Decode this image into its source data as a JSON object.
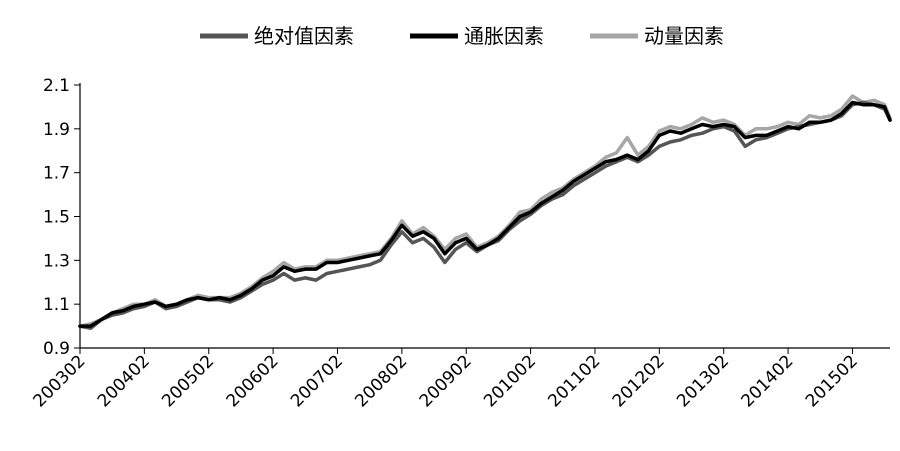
{
  "chart_data": {
    "type": "line",
    "title": "",
    "xlabel": "",
    "ylabel": "",
    "ylim": [
      0.9,
      2.1
    ],
    "yticks": [
      "0.9",
      "1.1",
      "1.3",
      "1.5",
      "1.7",
      "1.9",
      "2.1"
    ],
    "xtick_labels": [
      "200302",
      "200402",
      "200502",
      "200602",
      "200702",
      "200802",
      "200902",
      "201002",
      "201102",
      "201202",
      "201302",
      "201402",
      "201502"
    ],
    "grid": false,
    "legend_position": "top",
    "colors": {
      "绝对值因素": "#555555",
      "通胀因素": "#000000",
      "动量因素": "#a6a6a6"
    },
    "series": [
      {
        "name": "绝对值因素",
        "color": "#555555",
        "points": [
          [
            "200302",
            1.0
          ],
          [
            "200304",
            0.99
          ],
          [
            "200306",
            1.03
          ],
          [
            "200308",
            1.05
          ],
          [
            "200310",
            1.06
          ],
          [
            "200312",
            1.08
          ],
          [
            "200402",
            1.09
          ],
          [
            "200404",
            1.11
          ],
          [
            "200406",
            1.08
          ],
          [
            "200408",
            1.09
          ],
          [
            "200410",
            1.11
          ],
          [
            "200412",
            1.13
          ],
          [
            "200502",
            1.12
          ],
          [
            "200504",
            1.12
          ],
          [
            "200506",
            1.11
          ],
          [
            "200508",
            1.13
          ],
          [
            "200510",
            1.16
          ],
          [
            "200512",
            1.19
          ],
          [
            "200602",
            1.21
          ],
          [
            "200604",
            1.24
          ],
          [
            "200606",
            1.21
          ],
          [
            "200608",
            1.22
          ],
          [
            "200610",
            1.21
          ],
          [
            "200612",
            1.24
          ],
          [
            "200702",
            1.25
          ],
          [
            "200704",
            1.26
          ],
          [
            "200706",
            1.27
          ],
          [
            "200708",
            1.28
          ],
          [
            "200710",
            1.3
          ],
          [
            "200712",
            1.37
          ],
          [
            "200802",
            1.43
          ],
          [
            "200804",
            1.38
          ],
          [
            "200806",
            1.4
          ],
          [
            "200808",
            1.36
          ],
          [
            "200810",
            1.29
          ],
          [
            "200812",
            1.35
          ],
          [
            "200902",
            1.38
          ],
          [
            "200904",
            1.34
          ],
          [
            "200906",
            1.37
          ],
          [
            "200908",
            1.39
          ],
          [
            "200910",
            1.44
          ],
          [
            "200912",
            1.48
          ],
          [
            "201002",
            1.51
          ],
          [
            "201004",
            1.55
          ],
          [
            "201006",
            1.58
          ],
          [
            "201008",
            1.6
          ],
          [
            "201010",
            1.64
          ],
          [
            "201012",
            1.67
          ],
          [
            "201102",
            1.7
          ],
          [
            "201104",
            1.73
          ],
          [
            "201106",
            1.75
          ],
          [
            "201108",
            1.77
          ],
          [
            "201110",
            1.75
          ],
          [
            "201112",
            1.78
          ],
          [
            "201202",
            1.82
          ],
          [
            "201204",
            1.84
          ],
          [
            "201206",
            1.85
          ],
          [
            "201208",
            1.87
          ],
          [
            "201210",
            1.88
          ],
          [
            "201212",
            1.9
          ],
          [
            "201302",
            1.91
          ],
          [
            "201304",
            1.89
          ],
          [
            "201306",
            1.82
          ],
          [
            "201308",
            1.85
          ],
          [
            "201310",
            1.86
          ],
          [
            "201312",
            1.88
          ],
          [
            "201402",
            1.9
          ],
          [
            "201404",
            1.91
          ],
          [
            "201406",
            1.92
          ],
          [
            "201408",
            1.93
          ],
          [
            "201410",
            1.94
          ],
          [
            "201412",
            1.96
          ],
          [
            "201502",
            2.01
          ],
          [
            "201504",
            2.02
          ],
          [
            "201506",
            2.01
          ],
          [
            "201508",
            1.99
          ],
          [
            "201509",
            1.94
          ]
        ]
      },
      {
        "name": "通胀因素",
        "color": "#000000",
        "points": [
          [
            "200302",
            1.0
          ],
          [
            "200304",
            1.0
          ],
          [
            "200306",
            1.03
          ],
          [
            "200308",
            1.06
          ],
          [
            "200310",
            1.07
          ],
          [
            "200312",
            1.09
          ],
          [
            "200402",
            1.1
          ],
          [
            "200404",
            1.11
          ],
          [
            "200406",
            1.09
          ],
          [
            "200408",
            1.1
          ],
          [
            "200410",
            1.12
          ],
          [
            "200412",
            1.13
          ],
          [
            "200502",
            1.12
          ],
          [
            "200504",
            1.13
          ],
          [
            "200506",
            1.12
          ],
          [
            "200508",
            1.14
          ],
          [
            "200510",
            1.17
          ],
          [
            "200512",
            1.21
          ],
          [
            "200602",
            1.23
          ],
          [
            "200604",
            1.27
          ],
          [
            "200606",
            1.25
          ],
          [
            "200608",
            1.26
          ],
          [
            "200610",
            1.26
          ],
          [
            "200612",
            1.29
          ],
          [
            "200702",
            1.29
          ],
          [
            "200704",
            1.3
          ],
          [
            "200706",
            1.31
          ],
          [
            "200708",
            1.32
          ],
          [
            "200710",
            1.33
          ],
          [
            "200712",
            1.39
          ],
          [
            "200802",
            1.46
          ],
          [
            "200804",
            1.41
          ],
          [
            "200806",
            1.43
          ],
          [
            "200808",
            1.4
          ],
          [
            "200810",
            1.33
          ],
          [
            "200812",
            1.38
          ],
          [
            "200902",
            1.4
          ],
          [
            "200904",
            1.35
          ],
          [
            "200906",
            1.37
          ],
          [
            "200908",
            1.4
          ],
          [
            "200910",
            1.45
          ],
          [
            "200912",
            1.5
          ],
          [
            "201002",
            1.52
          ],
          [
            "201004",
            1.56
          ],
          [
            "201006",
            1.59
          ],
          [
            "201008",
            1.62
          ],
          [
            "201010",
            1.66
          ],
          [
            "201012",
            1.69
          ],
          [
            "201102",
            1.72
          ],
          [
            "201104",
            1.75
          ],
          [
            "201106",
            1.76
          ],
          [
            "201108",
            1.78
          ],
          [
            "201110",
            1.76
          ],
          [
            "201112",
            1.8
          ],
          [
            "201202",
            1.87
          ],
          [
            "201204",
            1.89
          ],
          [
            "201206",
            1.88
          ],
          [
            "201208",
            1.9
          ],
          [
            "201210",
            1.92
          ],
          [
            "201212",
            1.91
          ],
          [
            "201302",
            1.92
          ],
          [
            "201304",
            1.91
          ],
          [
            "201306",
            1.86
          ],
          [
            "201308",
            1.87
          ],
          [
            "201310",
            1.87
          ],
          [
            "201312",
            1.89
          ],
          [
            "201402",
            1.91
          ],
          [
            "201404",
            1.9
          ],
          [
            "201406",
            1.93
          ],
          [
            "201408",
            1.93
          ],
          [
            "201410",
            1.94
          ],
          [
            "201412",
            1.97
          ],
          [
            "201502",
            2.02
          ],
          [
            "201504",
            2.01
          ],
          [
            "201506",
            2.01
          ],
          [
            "201508",
            2.0
          ],
          [
            "201509",
            1.94
          ]
        ]
      },
      {
        "name": "动量因素",
        "color": "#a6a6a6",
        "points": [
          [
            "200302",
            1.0
          ],
          [
            "200304",
            1.01
          ],
          [
            "200306",
            1.03
          ],
          [
            "200308",
            1.06
          ],
          [
            "200310",
            1.08
          ],
          [
            "200312",
            1.1
          ],
          [
            "200402",
            1.1
          ],
          [
            "200404",
            1.12
          ],
          [
            "200406",
            1.09
          ],
          [
            "200408",
            1.1
          ],
          [
            "200410",
            1.12
          ],
          [
            "200412",
            1.14
          ],
          [
            "200502",
            1.13
          ],
          [
            "200504",
            1.13
          ],
          [
            "200506",
            1.13
          ],
          [
            "200508",
            1.15
          ],
          [
            "200510",
            1.18
          ],
          [
            "200512",
            1.22
          ],
          [
            "200602",
            1.25
          ],
          [
            "200604",
            1.29
          ],
          [
            "200606",
            1.26
          ],
          [
            "200608",
            1.27
          ],
          [
            "200610",
            1.27
          ],
          [
            "200612",
            1.3
          ],
          [
            "200702",
            1.3
          ],
          [
            "200704",
            1.31
          ],
          [
            "200706",
            1.32
          ],
          [
            "200708",
            1.33
          ],
          [
            "200710",
            1.34
          ],
          [
            "200712",
            1.4
          ],
          [
            "200802",
            1.48
          ],
          [
            "200804",
            1.42
          ],
          [
            "200806",
            1.45
          ],
          [
            "200808",
            1.41
          ],
          [
            "200810",
            1.35
          ],
          [
            "200812",
            1.4
          ],
          [
            "200902",
            1.42
          ],
          [
            "200904",
            1.36
          ],
          [
            "200906",
            1.38
          ],
          [
            "200908",
            1.41
          ],
          [
            "200910",
            1.46
          ],
          [
            "200912",
            1.52
          ],
          [
            "201002",
            1.53
          ],
          [
            "201004",
            1.58
          ],
          [
            "201006",
            1.61
          ],
          [
            "201008",
            1.63
          ],
          [
            "201010",
            1.67
          ],
          [
            "201012",
            1.7
          ],
          [
            "201102",
            1.73
          ],
          [
            "201104",
            1.77
          ],
          [
            "201106",
            1.79
          ],
          [
            "201108",
            1.86
          ],
          [
            "201110",
            1.78
          ],
          [
            "201112",
            1.82
          ],
          [
            "201202",
            1.89
          ],
          [
            "201204",
            1.91
          ],
          [
            "201206",
            1.9
          ],
          [
            "201208",
            1.92
          ],
          [
            "201210",
            1.95
          ],
          [
            "201212",
            1.93
          ],
          [
            "201302",
            1.94
          ],
          [
            "201304",
            1.92
          ],
          [
            "201306",
            1.87
          ],
          [
            "201308",
            1.9
          ],
          [
            "201310",
            1.9
          ],
          [
            "201312",
            1.91
          ],
          [
            "201402",
            1.93
          ],
          [
            "201404",
            1.92
          ],
          [
            "201406",
            1.96
          ],
          [
            "201408",
            1.95
          ],
          [
            "201410",
            1.96
          ],
          [
            "201412",
            1.99
          ],
          [
            "201502",
            2.05
          ],
          [
            "201504",
            2.02
          ],
          [
            "201506",
            2.03
          ],
          [
            "201508",
            2.01
          ],
          [
            "201509",
            1.95
          ]
        ]
      }
    ]
  }
}
